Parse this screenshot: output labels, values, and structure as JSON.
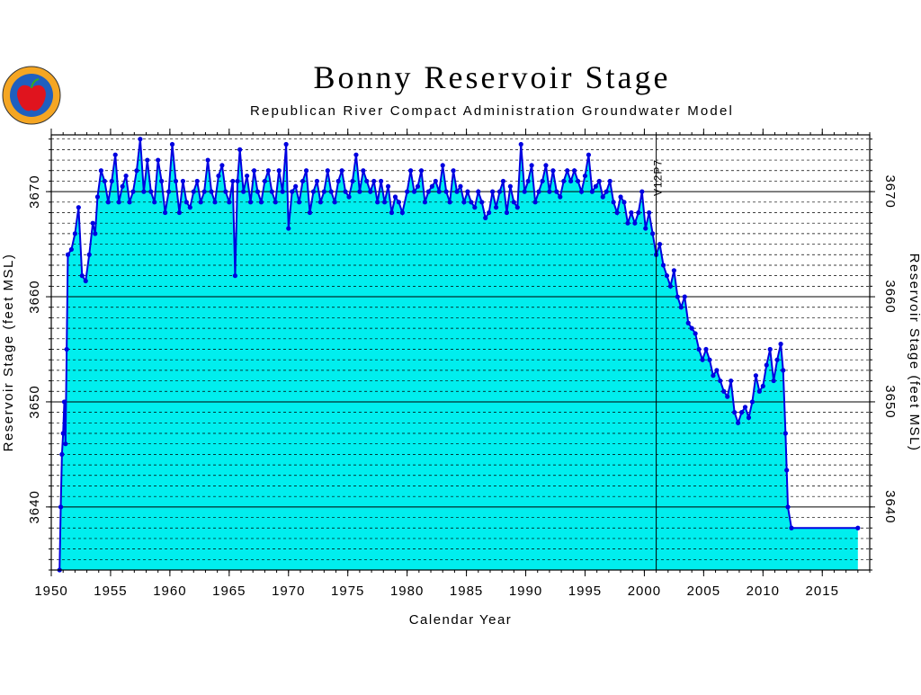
{
  "chart_data": {
    "type": "line",
    "title": "Bonny Reservoir Stage",
    "subtitle": "Republican River Compact Administration Groundwater Model",
    "xlabel": "Calendar Year",
    "ylabel": "Reservoir Stage (feet MSL)",
    "y2label": "Reservoir Stage (feet MSL)",
    "color": "#0000e0",
    "fill_color": "#00eeee",
    "markers": true,
    "grid": true,
    "minor_grid_step": 1,
    "minor_xtick_step": 1,
    "xlim": [
      1950,
      2019
    ],
    "ylim": [
      3634,
      3675.4
    ],
    "y2lim": [
      3634,
      3675.4
    ],
    "xticks": [
      1950,
      1955,
      1960,
      1965,
      1970,
      1975,
      1980,
      1985,
      1990,
      1995,
      2000,
      2005,
      2010,
      2015
    ],
    "yticks": [
      3640,
      3650,
      3660,
      3670
    ],
    "y2ticks": [
      3640,
      3650,
      3660,
      3670
    ],
    "annotation": {
      "text": "V12P7",
      "x": 2001
    },
    "x": [
      1950.7,
      1950.8,
      1950.9,
      1951.0,
      1951.1,
      1951.2,
      1951.3,
      1951.4,
      1951.7,
      1952.0,
      1952.3,
      1952.6,
      1952.9,
      1953.2,
      1953.5,
      1953.7,
      1953.9,
      1954.2,
      1954.5,
      1954.8,
      1955.1,
      1955.4,
      1955.7,
      1956.0,
      1956.3,
      1956.6,
      1956.9,
      1957.2,
      1957.5,
      1957.8,
      1958.1,
      1958.4,
      1958.7,
      1959.0,
      1959.3,
      1959.6,
      1959.9,
      1960.2,
      1960.5,
      1960.8,
      1961.1,
      1961.4,
      1961.7,
      1962.0,
      1962.3,
      1962.6,
      1962.9,
      1963.2,
      1963.5,
      1963.8,
      1964.1,
      1964.4,
      1964.7,
      1965.0,
      1965.3,
      1965.5,
      1965.7,
      1965.9,
      1966.2,
      1966.5,
      1966.8,
      1967.1,
      1967.4,
      1967.7,
      1968.0,
      1968.3,
      1968.6,
      1968.9,
      1969.2,
      1969.5,
      1969.8,
      1970.0,
      1970.3,
      1970.6,
      1970.9,
      1971.2,
      1971.5,
      1971.8,
      1972.1,
      1972.4,
      1972.7,
      1973.0,
      1973.3,
      1973.6,
      1973.9,
      1974.2,
      1974.5,
      1974.8,
      1975.1,
      1975.4,
      1975.7,
      1976.0,
      1976.3,
      1976.6,
      1976.9,
      1977.2,
      1977.5,
      1977.8,
      1978.1,
      1978.4,
      1978.7,
      1979.0,
      1979.3,
      1979.6,
      1980.0,
      1980.3,
      1980.6,
      1980.9,
      1981.2,
      1981.5,
      1981.8,
      1982.1,
      1982.4,
      1982.7,
      1983.0,
      1983.3,
      1983.6,
      1983.9,
      1984.2,
      1984.5,
      1984.8,
      1985.1,
      1985.4,
      1985.7,
      1986.0,
      1986.3,
      1986.6,
      1986.9,
      1987.2,
      1987.5,
      1987.8,
      1988.1,
      1988.4,
      1988.7,
      1989.0,
      1989.3,
      1989.6,
      1989.9,
      1990.2,
      1990.5,
      1990.8,
      1991.1,
      1991.4,
      1991.7,
      1992.0,
      1992.3,
      1992.6,
      1992.9,
      1993.2,
      1993.5,
      1993.8,
      1994.1,
      1994.4,
      1994.7,
      1995.0,
      1995.3,
      1995.6,
      1995.9,
      1996.2,
      1996.5,
      1996.8,
      1997.1,
      1997.4,
      1997.7,
      1998.0,
      1998.3,
      1998.6,
      1998.9,
      1999.2,
      1999.5,
      1999.8,
      2000.1,
      2000.4,
      2000.7,
      2001.0,
      2001.3,
      2001.6,
      2001.9,
      2002.2,
      2002.5,
      2002.8,
      2003.1,
      2003.4,
      2003.7,
      2004.0,
      2004.3,
      2004.6,
      2004.9,
      2005.2,
      2005.5,
      2005.8,
      2006.1,
      2006.4,
      2006.7,
      2007.0,
      2007.3,
      2007.6,
      2007.9,
      2008.2,
      2008.5,
      2008.8,
      2009.1,
      2009.4,
      2009.7,
      2010.0,
      2010.3,
      2010.6,
      2010.9,
      2011.2,
      2011.5,
      2011.7,
      2011.9,
      2012.0,
      2012.1,
      2012.4,
      2018.0
    ],
    "values": [
      3634,
      3640,
      3645,
      3647,
      3650,
      3646,
      3655,
      3664,
      3664.5,
      3666,
      3668.5,
      3662,
      3661.5,
      3664,
      3667,
      3666,
      3669.5,
      3672,
      3671,
      3669,
      3671,
      3673.5,
      3669,
      3670.5,
      3671.5,
      3669,
      3670,
      3672,
      3675,
      3670,
      3673,
      3670,
      3669,
      3673,
      3671,
      3668,
      3670,
      3674.5,
      3671,
      3668,
      3671,
      3669,
      3668.5,
      3670,
      3671,
      3669,
      3670,
      3673,
      3670,
      3669,
      3671.5,
      3672.5,
      3670,
      3669,
      3671,
      3662,
      3671,
      3674,
      3670,
      3671.5,
      3669,
      3672,
      3670,
      3669,
      3671,
      3672,
      3670,
      3669,
      3672,
      3670,
      3674.5,
      3666.5,
      3670,
      3670.5,
      3669,
      3671,
      3672,
      3668,
      3670,
      3671,
      3669,
      3670,
      3672,
      3670,
      3669,
      3671,
      3672,
      3670,
      3669.5,
      3671,
      3673.5,
      3670,
      3672,
      3671,
      3670,
      3671,
      3669,
      3671,
      3669,
      3670.5,
      3668,
      3669.5,
      3669,
      3668,
      3670,
      3672,
      3670,
      3670.5,
      3672,
      3669,
      3670,
      3670.5,
      3671,
      3670,
      3672.5,
      3670,
      3669,
      3672,
      3670,
      3670.5,
      3669,
      3670,
      3669,
      3668.5,
      3670,
      3669,
      3667.5,
      3668,
      3670,
      3668.5,
      3670,
      3671,
      3668,
      3670.5,
      3669,
      3668.5,
      3674.5,
      3670,
      3671,
      3672.5,
      3669,
      3670,
      3671,
      3672.5,
      3670,
      3672,
      3670,
      3669.5,
      3671,
      3672,
      3671,
      3672,
      3671,
      3670,
      3671.5,
      3673.5,
      3670,
      3670.5,
      3671,
      3669.5,
      3670,
      3671,
      3669,
      3668,
      3669.5,
      3669,
      3667,
      3668,
      3667,
      3668,
      3670,
      3666.5,
      3668,
      3666,
      3664,
      3665,
      3663,
      3662,
      3661,
      3662.5,
      3660,
      3659,
      3660,
      3657.5,
      3657,
      3656.5,
      3655,
      3654,
      3655,
      3654,
      3652.5,
      3653,
      3652,
      3651,
      3650.5,
      3652,
      3649,
      3648,
      3649,
      3649.5,
      3648.5,
      3650,
      3652.5,
      3651,
      3651.5,
      3653.5,
      3655,
      3652,
      3654,
      3655.5,
      3653,
      3647,
      3643.5,
      3640,
      3638,
      3638
    ]
  }
}
